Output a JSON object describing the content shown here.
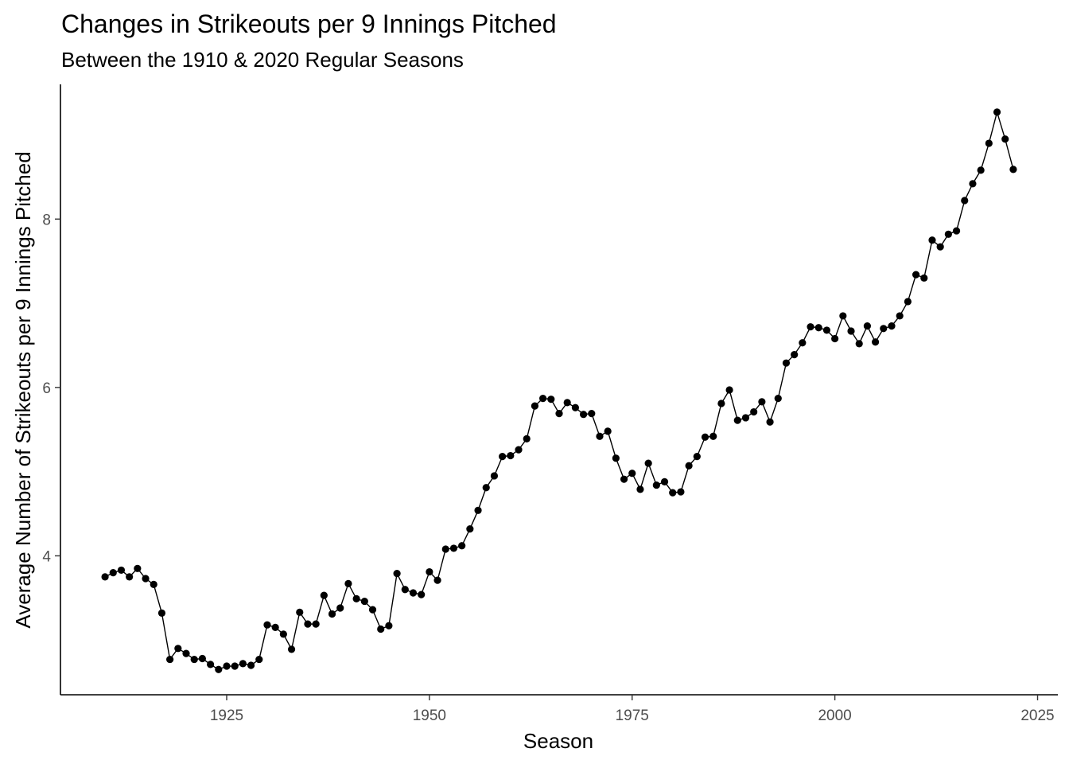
{
  "chart_data": {
    "type": "line",
    "title": "Changes in Strikeouts per 9 Innings Pitched",
    "subtitle": "Between the 1910 & 2020 Regular Seasons",
    "xlabel": "Season",
    "ylabel": "Average Number of Strikeouts per 9 Innings Pitched",
    "xlim": [
      1904.5,
      2027.5
    ],
    "ylim": [
      2.35,
      9.6
    ],
    "x_ticks": [
      1925,
      1950,
      1975,
      2000,
      2025
    ],
    "x_tick_labels": [
      "1925",
      "1950",
      "1975",
      "2000",
      "2025"
    ],
    "y_ticks": [
      4,
      6,
      8
    ],
    "y_tick_labels": [
      "4",
      "6",
      "8"
    ],
    "grid": false,
    "legend": "none",
    "colors": {
      "line": "#000000",
      "points": "#000000",
      "axis": "#000000"
    },
    "series": [
      {
        "x": [
          1910,
          1911,
          1912,
          1913,
          1914,
          1915,
          1916,
          1917,
          1918,
          1919,
          1920,
          1921,
          1922,
          1923,
          1924,
          1925,
          1926,
          1927,
          1928,
          1929,
          1930,
          1931,
          1932,
          1933,
          1934,
          1935,
          1936,
          1937,
          1938,
          1939,
          1940,
          1941,
          1942,
          1943,
          1944,
          1945,
          1946,
          1947,
          1948,
          1949,
          1950,
          1951,
          1952,
          1953,
          1954,
          1955,
          1956,
          1957,
          1958,
          1959,
          1960,
          1961,
          1962,
          1963,
          1964,
          1965,
          1966,
          1967,
          1968,
          1969,
          1970,
          1971,
          1972,
          1973,
          1974,
          1975,
          1976,
          1977,
          1978,
          1979,
          1980,
          1981,
          1982,
          1983,
          1984,
          1985,
          1986,
          1987,
          1988,
          1989,
          1990,
          1991,
          1992,
          1993,
          1994,
          1995,
          1996,
          1997,
          1998,
          1999,
          2000,
          2001,
          2002,
          2003,
          2004,
          2005,
          2006,
          2007,
          2008,
          2009,
          2010,
          2011,
          2012,
          2013,
          2014,
          2015,
          2016,
          2017,
          2018,
          2019,
          2020,
          2021,
          2022
        ],
        "y": [
          3.75,
          3.8,
          3.83,
          3.75,
          3.85,
          3.73,
          3.66,
          3.32,
          2.77,
          2.9,
          2.84,
          2.77,
          2.78,
          2.71,
          2.65,
          2.69,
          2.69,
          2.72,
          2.7,
          2.77,
          3.18,
          3.15,
          3.07,
          2.89,
          3.33,
          3.19,
          3.19,
          3.53,
          3.31,
          3.38,
          3.67,
          3.49,
          3.46,
          3.36,
          3.13,
          3.17,
          3.79,
          3.6,
          3.56,
          3.54,
          3.81,
          3.71,
          4.08,
          4.09,
          4.12,
          4.32,
          4.54,
          4.81,
          4.95,
          5.18,
          5.19,
          5.26,
          5.39,
          5.78,
          5.87,
          5.86,
          5.69,
          5.82,
          5.76,
          5.68,
          5.69,
          5.42,
          5.48,
          5.16,
          4.91,
          4.98,
          4.79,
          5.1,
          4.84,
          4.88,
          4.75,
          4.76,
          5.07,
          5.18,
          5.41,
          5.42,
          5.81,
          5.97,
          5.61,
          5.64,
          5.71,
          5.83,
          5.59,
          5.87,
          6.29,
          6.39,
          6.53,
          6.72,
          6.71,
          6.68,
          6.58,
          6.85,
          6.67,
          6.52,
          6.73,
          6.54,
          6.7,
          6.73,
          6.85,
          7.02,
          7.34,
          7.3,
          7.75,
          7.67,
          7.82,
          7.86,
          8.22,
          8.42,
          8.58,
          8.9,
          9.27,
          8.95,
          8.59
        ]
      }
    ]
  }
}
